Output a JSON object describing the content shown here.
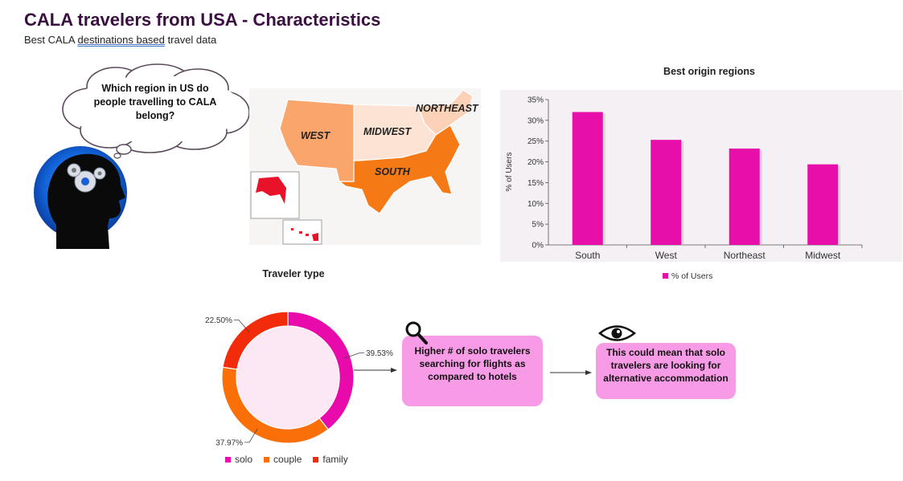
{
  "header": {
    "title": "CALA travelers from USA - Characteristics",
    "subtitle_pre": "Best CALA ",
    "subtitle_link": "destinations based",
    "subtitle_post": " travel data"
  },
  "thought_bubble": {
    "text": "Which region in US do people travelling to CALA belong?"
  },
  "map": {
    "regions": [
      "WEST",
      "MIDWEST",
      "NORTHEAST",
      "SOUTH"
    ],
    "colors": {
      "west": "#f9a56c",
      "midwest": "#fce3d3",
      "northeast": "#fbd2b8",
      "south": "#f57914",
      "alaska": "#e8132b",
      "hawaii": "#e8132b"
    }
  },
  "chart_data": [
    {
      "type": "bar",
      "title": "Best origin regions",
      "categories": [
        "South",
        "West",
        "Northeast",
        "Midwest"
      ],
      "series": [
        {
          "name": "% of Users",
          "values": [
            32,
            25.3,
            23.2,
            19.4
          ],
          "color": "#e70eaa"
        }
      ],
      "ylabel": "% of Users",
      "yticks": [
        "0%",
        "5%",
        "10%",
        "15%",
        "20%",
        "25%",
        "30%",
        "35%"
      ],
      "ylim": [
        0,
        35
      ],
      "legend_position": "bottom"
    },
    {
      "type": "pie",
      "title": "Traveler type",
      "categories": [
        "solo",
        "couple",
        "family"
      ],
      "values": [
        39.53,
        37.97,
        22.5
      ],
      "labels": [
        "39.53%",
        "37.97%",
        "22.50%"
      ],
      "colors": [
        "#e90aac",
        "#fb6f08",
        "#f22b0a"
      ],
      "hole_fill": "#fbe8f4",
      "legend_position": "bottom"
    }
  ],
  "callouts": [
    {
      "text": "Higher # of solo travelers searching for flights as compared to hotels",
      "icon": "magnifier-icon"
    },
    {
      "text": "This could mean that solo travelers are looking for alternative accommodation",
      "icon": "eye-icon"
    }
  ]
}
